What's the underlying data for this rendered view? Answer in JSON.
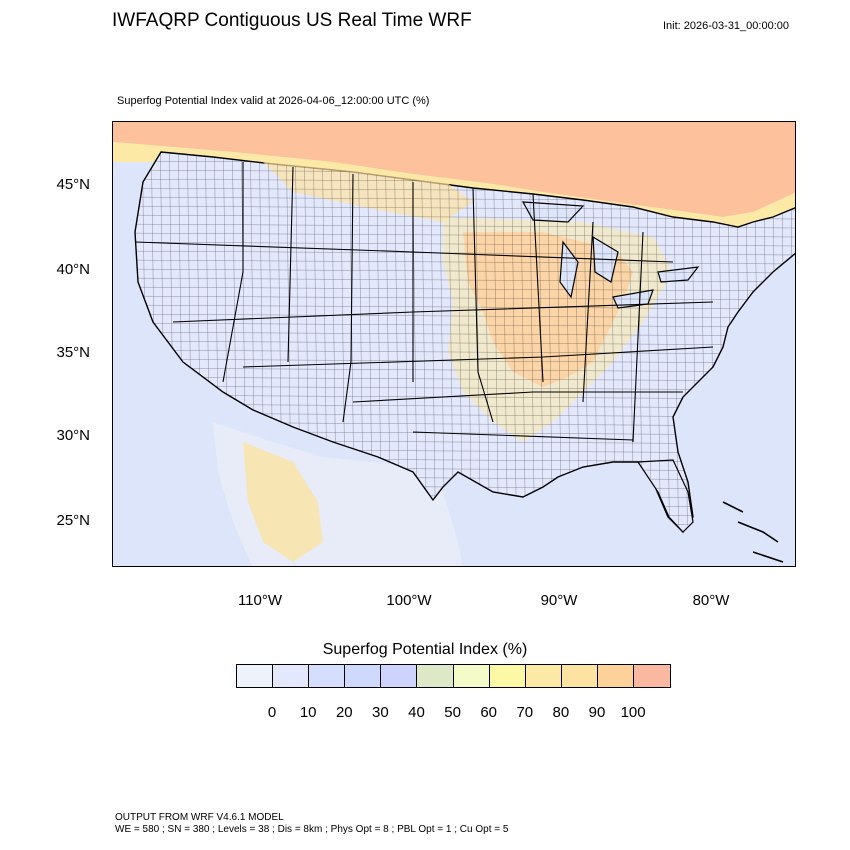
{
  "header": {
    "title": "IWFAQRP Contiguous US Real Time WRF",
    "init": "Init: 2026-03-31_00:00:00",
    "subtitle": "Superfog Potential Index valid at 2026-04-06_12:00:00 UTC   (%)"
  },
  "map": {
    "latitude_labels": [
      "45°N",
      "40°N",
      "35°N",
      "30°N",
      "25°N"
    ],
    "longitude_labels": [
      "110°W",
      "100°W",
      "90°W",
      "80°W"
    ]
  },
  "legend": {
    "title": "Superfog Potential Index  (%)",
    "tick_labels": [
      "0",
      "10",
      "20",
      "30",
      "40",
      "50",
      "60",
      "70",
      "80",
      "90",
      "100"
    ],
    "colors": [
      "#eef2fa",
      "#e3e8fd",
      "#d6defd",
      "#cfd8fd",
      "#cdd3fd",
      "#dce8c6",
      "#f4fac8",
      "#fdf8a6",
      "#fde9a6",
      "#fde3a2",
      "#fdd19a",
      "#fbb8a0"
    ]
  },
  "footer": {
    "line1": "OUTPUT FROM WRF V4.6.1 MODEL",
    "line2": "WE = 580 ; SN = 380 ; Levels = 38 ; Dis = 8km ; Phys Opt = 8 ; PBL Opt = 1 ; Cu Opt = 5"
  }
}
